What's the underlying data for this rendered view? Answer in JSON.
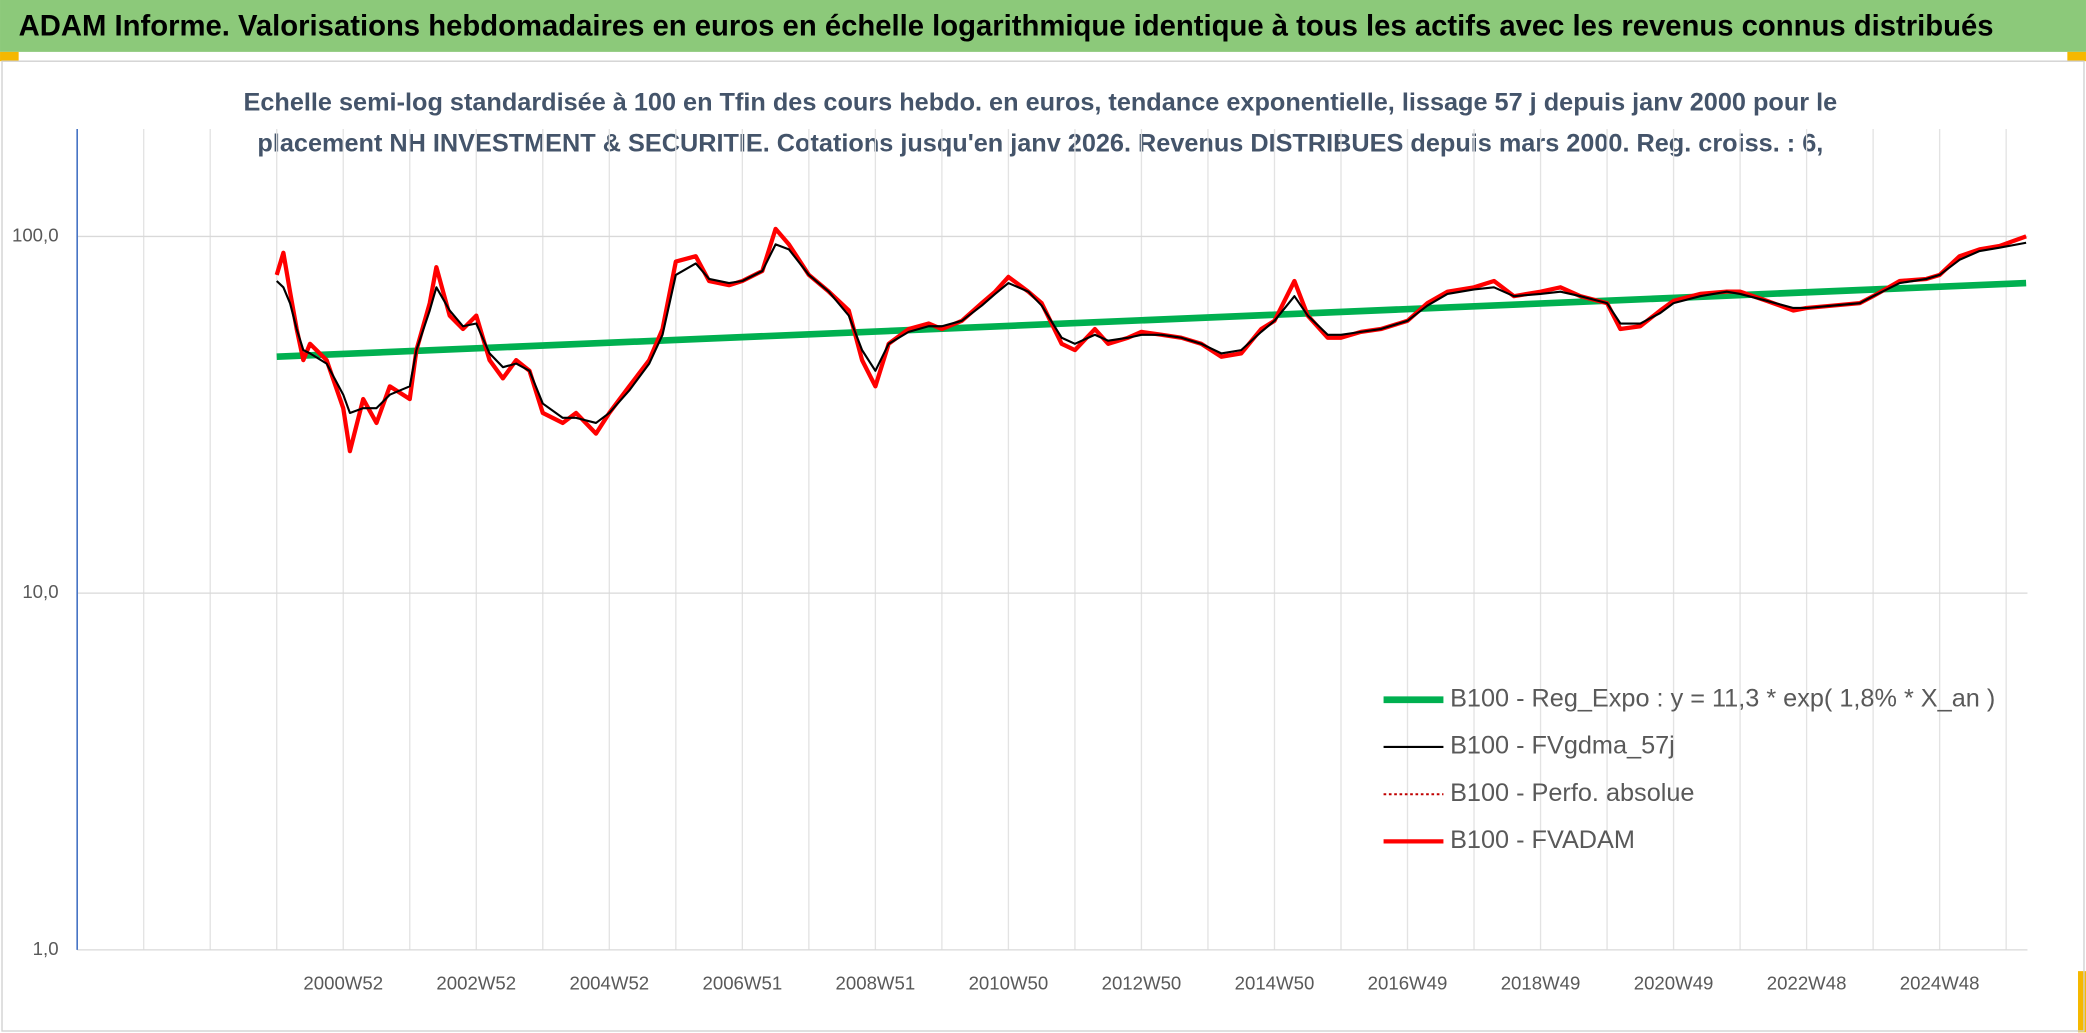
{
  "header": {
    "title": "ADAM Informe. Valorisations hebdomadaires en euros en échelle logarithmique identique à tous les actifs avec les revenus connus distribués"
  },
  "chart_data": {
    "type": "line",
    "subtitle_lines": [
      "Echelle semi-log standardisée à 100 en Tfin des cours hebdo. en euros, tendance exponentielle, lissage 57 j depuis janv 2000 pour le",
      "placement NH INVESTMENT & SECURITIE. Cotations jusqu'en janv 2026. Revenus DISTRIBUES depuis mars 2000. Reg. croiss. : 6,"
    ],
    "log_y": true,
    "grid": true,
    "legend": "lower right",
    "ylim": [
      1,
      200
    ],
    "yticks": [
      {
        "value": 1,
        "label": "1,0"
      },
      {
        "value": 10,
        "label": "10,0"
      },
      {
        "value": 100,
        "label": "100,0"
      }
    ],
    "xlim": [
      1997,
      2026.32
    ],
    "xticks": [
      {
        "value": 2001,
        "label": "2000W52"
      },
      {
        "value": 2003,
        "label": "2002W52"
      },
      {
        "value": 2005,
        "label": "2004W52"
      },
      {
        "value": 2007,
        "label": "2006W51"
      },
      {
        "value": 2009,
        "label": "2008W51"
      },
      {
        "value": 2011,
        "label": "2010W50"
      },
      {
        "value": 2013,
        "label": "2012W50"
      },
      {
        "value": 2015,
        "label": "2014W50"
      },
      {
        "value": 2017,
        "label": "2016W49"
      },
      {
        "value": 2019,
        "label": "2018W49"
      },
      {
        "value": 2021,
        "label": "2020W49"
      },
      {
        "value": 2023,
        "label": "2022W48"
      },
      {
        "value": 2025,
        "label": "2024W48"
      }
    ],
    "xminor_ticks": [
      1997,
      1998,
      1999,
      2000,
      2001,
      2002,
      2003,
      2004,
      2005,
      2006,
      2007,
      2008,
      2009,
      2010,
      2011,
      2012,
      2013,
      2014,
      2015,
      2016,
      2017,
      2018,
      2019,
      2020,
      2021,
      2022,
      2023,
      2024,
      2025,
      2026
    ],
    "x": [
      2000.0,
      2000.1,
      2000.2,
      2000.3,
      2000.4,
      2000.5,
      2000.75,
      2001.0,
      2001.1,
      2001.3,
      2001.5,
      2001.7,
      2002.0,
      2002.1,
      2002.3,
      2002.4,
      2002.6,
      2002.8,
      2003.0,
      2003.2,
      2003.4,
      2003.6,
      2003.8,
      2004.0,
      2004.3,
      2004.5,
      2004.8,
      2005.0,
      2005.3,
      2005.6,
      2005.8,
      2006.0,
      2006.3,
      2006.5,
      2006.8,
      2007.0,
      2007.3,
      2007.5,
      2007.7,
      2008.0,
      2008.3,
      2008.6,
      2008.8,
      2009.0,
      2009.2,
      2009.5,
      2009.8,
      2010.0,
      2010.3,
      2010.6,
      2010.8,
      2011.0,
      2011.3,
      2011.5,
      2011.8,
      2012.0,
      2012.3,
      2012.5,
      2012.8,
      2013.0,
      2013.3,
      2013.6,
      2013.9,
      2014.2,
      2014.5,
      2014.8,
      2015.0,
      2015.3,
      2015.5,
      2015.8,
      2016.0,
      2016.3,
      2016.6,
      2017.0,
      2017.3,
      2017.6,
      2018.0,
      2018.3,
      2018.6,
      2019.0,
      2019.3,
      2019.6,
      2020.0,
      2020.2,
      2020.5,
      2020.8,
      2021.0,
      2021.4,
      2021.8,
      2022.0,
      2022.4,
      2022.8,
      2023.0,
      2023.4,
      2023.8,
      2024.0,
      2024.4,
      2024.8,
      2025.0,
      2025.3,
      2025.6,
      2025.9,
      2026.3
    ],
    "series": [
      {
        "name": "B100 - Reg_Expo : y = 11,3 * exp( 1,8% *  X_an )",
        "color": "#00b050",
        "x": [
          2000.0,
          2026.3
        ],
        "values": [
          46,
          74
        ]
      },
      {
        "name": "B100 - FVgdma_57j",
        "color": "#000000",
        "values": [
          75,
          72,
          65,
          55,
          48,
          47,
          44,
          36,
          32,
          33,
          33,
          36,
          38,
          48,
          62,
          72,
          62,
          56,
          57,
          47,
          43,
          44,
          42,
          34,
          31,
          31,
          30,
          32,
          37,
          44,
          53,
          78,
          84,
          76,
          74,
          75,
          80,
          95,
          92,
          78,
          70,
          60,
          48,
          42,
          50,
          54,
          56,
          56,
          58,
          64,
          69,
          74,
          70,
          64,
          52,
          50,
          53,
          51,
          52,
          53,
          53,
          52,
          50,
          47,
          48,
          54,
          58,
          68,
          60,
          53,
          53,
          54,
          55,
          58,
          64,
          69,
          71,
          72,
          68,
          69,
          70,
          68,
          65,
          57,
          57,
          61,
          65,
          68,
          70,
          69,
          66,
          63,
          63,
          64,
          65,
          68,
          74,
          76,
          78,
          86,
          91,
          93,
          96
        ]
      },
      {
        "name": "B100 - Perfo. absolue",
        "color": "#c00000",
        "dotted": true,
        "values": [
          78,
          90,
          70,
          55,
          45,
          50,
          45,
          33,
          25,
          35,
          30,
          38,
          35,
          48,
          65,
          82,
          60,
          55,
          60,
          45,
          40,
          45,
          42,
          32,
          30,
          32,
          28,
          32,
          38,
          45,
          55,
          85,
          88,
          75,
          73,
          75,
          80,
          105,
          95,
          78,
          70,
          62,
          45,
          38,
          50,
          55,
          57,
          55,
          58,
          65,
          70,
          77,
          70,
          65,
          50,
          48,
          55,
          50,
          52,
          54,
          53,
          52,
          50,
          46,
          47,
          55,
          58,
          75,
          60,
          52,
          52,
          54,
          55,
          58,
          65,
          70,
          72,
          75,
          68,
          70,
          72,
          68,
          65,
          55,
          56,
          62,
          66,
          69,
          70,
          70,
          66,
          62,
          63,
          64,
          65,
          68,
          75,
          76,
          78,
          88,
          92,
          94,
          100
        ]
      },
      {
        "name": "B100 - FVADAM",
        "color": "#ff0000",
        "values": [
          78,
          90,
          70,
          55,
          45,
          50,
          45,
          33,
          25,
          35,
          30,
          38,
          35,
          48,
          65,
          82,
          60,
          55,
          60,
          45,
          40,
          45,
          42,
          32,
          30,
          32,
          28,
          32,
          38,
          45,
          55,
          85,
          88,
          75,
          73,
          75,
          80,
          105,
          95,
          78,
          70,
          62,
          45,
          38,
          50,
          55,
          57,
          55,
          58,
          65,
          70,
          77,
          70,
          65,
          50,
          48,
          55,
          50,
          52,
          54,
          53,
          52,
          50,
          46,
          47,
          55,
          58,
          75,
          60,
          52,
          52,
          54,
          55,
          58,
          65,
          70,
          72,
          75,
          68,
          70,
          72,
          68,
          65,
          55,
          56,
          62,
          66,
          69,
          70,
          70,
          66,
          62,
          63,
          64,
          65,
          68,
          75,
          76,
          78,
          88,
          92,
          94,
          100
        ]
      }
    ]
  }
}
